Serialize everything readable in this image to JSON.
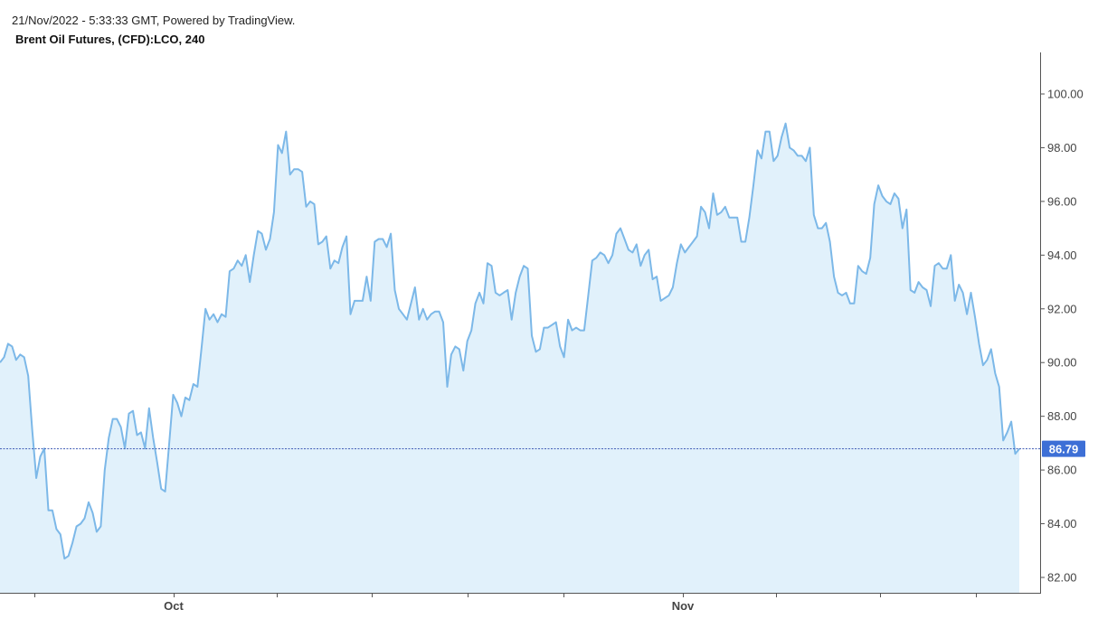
{
  "header": {
    "timestamp_line": "21/Nov/2022 - 5:33:33 GMT, Powered by TradingView.",
    "symbol_line": "Brent Oil Futures, (CFD):LCO, 240"
  },
  "colors": {
    "line": "#7cb8e8",
    "fill": "#e1f1fb",
    "last_price_line": "#3f5bb5",
    "last_price_badge": "#3d6fd6",
    "axis": "#555555"
  },
  "chart_data": {
    "type": "area",
    "title": "Brent Oil Futures, (CFD):LCO, 240",
    "xlabel": "",
    "ylabel": "",
    "ylim": [
      81.4,
      101.5
    ],
    "y_ticks": [
      "82.00",
      "84.00",
      "86.00",
      "88.00",
      "90.00",
      "92.00",
      "94.00",
      "96.00",
      "98.00",
      "100.00"
    ],
    "x_ticks": [
      "Oct",
      "Nov"
    ],
    "last_price": "86.79",
    "last_price_value": 86.79,
    "grid": false,
    "values": [
      90.0,
      90.2,
      90.7,
      90.6,
      90.1,
      90.3,
      90.2,
      89.5,
      87.5,
      85.7,
      86.5,
      86.8,
      84.5,
      84.5,
      83.8,
      83.6,
      82.7,
      82.8,
      83.3,
      83.9,
      84.0,
      84.2,
      84.8,
      84.4,
      83.7,
      83.9,
      86.0,
      87.2,
      87.9,
      87.9,
      87.6,
      86.8,
      88.1,
      88.2,
      87.3,
      87.4,
      86.8,
      88.3,
      87.2,
      86.3,
      85.3,
      85.2,
      87.0,
      88.8,
      88.5,
      88.0,
      88.7,
      88.6,
      89.2,
      89.1,
      90.5,
      92.0,
      91.6,
      91.8,
      91.5,
      91.8,
      91.7,
      93.4,
      93.5,
      93.8,
      93.6,
      94.0,
      93.0,
      94.0,
      94.9,
      94.8,
      94.2,
      94.6,
      95.6,
      98.1,
      97.8,
      98.6,
      97.0,
      97.2,
      97.2,
      97.1,
      95.8,
      96.0,
      95.9,
      94.4,
      94.5,
      94.7,
      93.5,
      93.8,
      93.7,
      94.3,
      94.7,
      91.8,
      92.3,
      92.3,
      92.3,
      93.2,
      92.3,
      94.5,
      94.6,
      94.6,
      94.3,
      94.8,
      92.7,
      92.0,
      91.8,
      91.6,
      92.2,
      92.8,
      91.6,
      92.0,
      91.6,
      91.8,
      91.9,
      91.9,
      91.5,
      89.1,
      90.3,
      90.6,
      90.5,
      89.7,
      90.8,
      91.2,
      92.2,
      92.6,
      92.2,
      93.7,
      93.6,
      92.6,
      92.5,
      92.6,
      92.7,
      91.6,
      92.6,
      93.2,
      93.6,
      93.5,
      91.0,
      90.4,
      90.5,
      91.3,
      91.3,
      91.4,
      91.5,
      90.6,
      90.2,
      91.6,
      91.2,
      91.3,
      91.2,
      91.2,
      92.5,
      93.8,
      93.9,
      94.1,
      94.0,
      93.7,
      94.0,
      94.8,
      95.0,
      94.6,
      94.2,
      94.1,
      94.4,
      93.6,
      94.0,
      94.2,
      93.1,
      93.2,
      92.3,
      92.4,
      92.5,
      92.8,
      93.7,
      94.4,
      94.1,
      94.3,
      94.5,
      94.7,
      95.8,
      95.6,
      95.0,
      96.3,
      95.5,
      95.6,
      95.8,
      95.4,
      95.4,
      95.4,
      94.5,
      94.5,
      95.4,
      96.6,
      97.9,
      97.6,
      98.6,
      98.6,
      97.5,
      97.7,
      98.4,
      98.9,
      98.0,
      97.9,
      97.7,
      97.7,
      97.5,
      98.0,
      95.5,
      95.0,
      95.0,
      95.2,
      94.5,
      93.2,
      92.6,
      92.5,
      92.6,
      92.2,
      92.2,
      93.6,
      93.4,
      93.3,
      93.9,
      95.9,
      96.6,
      96.2,
      96.0,
      95.9,
      96.3,
      96.1,
      95.0,
      95.7,
      92.7,
      92.6,
      93.0,
      92.8,
      92.7,
      92.1,
      93.6,
      93.7,
      93.5,
      93.5,
      94.0,
      92.3,
      92.9,
      92.6,
      91.8,
      92.6,
      91.7,
      90.7,
      89.9,
      90.1,
      90.5,
      89.6,
      89.1,
      87.1,
      87.4,
      87.8,
      86.6,
      86.79
    ]
  }
}
